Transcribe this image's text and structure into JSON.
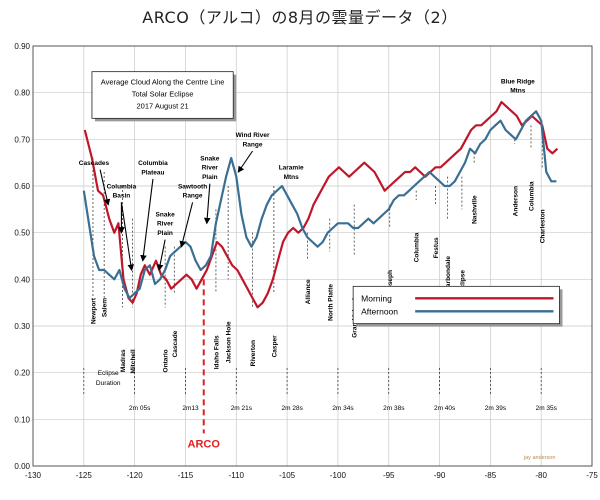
{
  "page_title": "ARCO（アルコ）の8月の雲量データ（2）",
  "chart_data": {
    "type": "line",
    "inner_title": [
      "Average Cloud Along the Centre Line",
      "Total Solar Eclipse",
      "2017 August 21"
    ],
    "xlim": [
      -130,
      -75
    ],
    "ylim": [
      0.0,
      0.9
    ],
    "x_ticks": [
      "-130",
      "-125",
      "-120",
      "-115",
      "-110",
      "-105",
      "-100",
      "-95",
      "-90",
      "-85",
      "-80",
      "-75"
    ],
    "y_ticks": [
      "0.00",
      "0.10",
      "0.20",
      "0.30",
      "0.40",
      "0.50",
      "0.60",
      "0.70",
      "0.80",
      "0.90"
    ],
    "legend": {
      "position": "right",
      "entries": [
        "Morning",
        "Afternoon"
      ]
    },
    "colors": {
      "morning": "#c0162a",
      "afternoon": "#3a6f93",
      "arco": "#e02020"
    },
    "series": [
      {
        "name": "Morning",
        "x": [
          -124.9,
          -124.2,
          -123.6,
          -123.1,
          -122.5,
          -122.0,
          -121.6,
          -121.1,
          -120.6,
          -120.2,
          -119.8,
          -119.4,
          -119.0,
          -118.5,
          -117.9,
          -117.4,
          -116.9,
          -116.4,
          -115.9,
          -115.4,
          -114.9,
          -114.4,
          -113.9,
          -113.4,
          -112.9,
          -112.4,
          -111.9,
          -111.4,
          -110.9,
          -110.4,
          -109.9,
          -109.4,
          -108.9,
          -108.4,
          -107.9,
          -107.4,
          -106.9,
          -106.4,
          -105.9,
          -105.4,
          -104.9,
          -104.4,
          -103.9,
          -103.4,
          -102.9,
          -102.4,
          -101.9,
          -101.4,
          -100.9,
          -100.4,
          -99.9,
          -99.4,
          -98.9,
          -98.4,
          -97.9,
          -97.4,
          -96.9,
          -96.4,
          -95.9,
          -95.4,
          -94.9,
          -94.4,
          -93.9,
          -93.4,
          -92.9,
          -92.4,
          -91.9,
          -91.4,
          -90.9,
          -90.4,
          -89.9,
          -89.4,
          -88.9,
          -88.4,
          -87.9,
          -87.4,
          -86.9,
          -86.4,
          -85.9,
          -85.4,
          -84.9,
          -84.4,
          -83.9,
          -83.4,
          -82.9,
          -82.4,
          -81.9,
          -81.4,
          -80.9,
          -80.4,
          -79.9,
          -79.4,
          -78.9,
          -78.4
        ],
        "values": [
          0.72,
          0.66,
          0.59,
          0.58,
          0.53,
          0.5,
          0.52,
          0.4,
          0.36,
          0.35,
          0.37,
          0.41,
          0.43,
          0.41,
          0.44,
          0.41,
          0.4,
          0.38,
          0.39,
          0.4,
          0.41,
          0.4,
          0.38,
          0.4,
          0.42,
          0.45,
          0.48,
          0.47,
          0.45,
          0.43,
          0.42,
          0.4,
          0.38,
          0.36,
          0.34,
          0.35,
          0.37,
          0.4,
          0.44,
          0.48,
          0.5,
          0.51,
          0.5,
          0.51,
          0.53,
          0.56,
          0.58,
          0.6,
          0.62,
          0.63,
          0.64,
          0.63,
          0.62,
          0.63,
          0.64,
          0.65,
          0.64,
          0.63,
          0.61,
          0.59,
          0.6,
          0.61,
          0.62,
          0.63,
          0.63,
          0.64,
          0.63,
          0.62,
          0.63,
          0.64,
          0.64,
          0.65,
          0.66,
          0.67,
          0.68,
          0.7,
          0.72,
          0.73,
          0.73,
          0.74,
          0.75,
          0.76,
          0.78,
          0.77,
          0.76,
          0.75,
          0.73,
          0.74,
          0.75,
          0.74,
          0.73,
          0.68,
          0.67,
          0.68
        ]
      },
      {
        "name": "Afternoon",
        "x": [
          -125.0,
          -124.5,
          -124.0,
          -123.5,
          -123.0,
          -122.5,
          -122.0,
          -121.5,
          -121.0,
          -120.5,
          -120.0,
          -119.5,
          -119.0,
          -118.5,
          -118.0,
          -117.5,
          -117.0,
          -116.5,
          -116.0,
          -115.5,
          -115.0,
          -114.5,
          -114.0,
          -113.5,
          -113.0,
          -112.5,
          -112.0,
          -111.5,
          -111.0,
          -110.5,
          -110.0,
          -109.5,
          -109.0,
          -108.5,
          -108.0,
          -107.5,
          -107.0,
          -106.5,
          -106.0,
          -105.5,
          -105.0,
          -104.5,
          -104.0,
          -103.5,
          -103.0,
          -102.5,
          -102.0,
          -101.5,
          -101.0,
          -100.5,
          -100.0,
          -99.5,
          -99.0,
          -98.5,
          -98.0,
          -97.5,
          -97.0,
          -96.5,
          -96.0,
          -95.5,
          -95.0,
          -94.5,
          -94.0,
          -93.5,
          -93.0,
          -92.5,
          -92.0,
          -91.5,
          -91.0,
          -90.5,
          -90.0,
          -89.5,
          -89.0,
          -88.5,
          -88.0,
          -87.5,
          -87.0,
          -86.5,
          -86.0,
          -85.5,
          -85.0,
          -84.5,
          -84.0,
          -83.5,
          -83.0,
          -82.5,
          -82.0,
          -81.5,
          -81.0,
          -80.5,
          -80.0,
          -79.5,
          -79.0,
          -78.5
        ],
        "values": [
          0.59,
          0.52,
          0.45,
          0.42,
          0.42,
          0.41,
          0.4,
          0.42,
          0.38,
          0.36,
          0.37,
          0.38,
          0.42,
          0.43,
          0.39,
          0.4,
          0.42,
          0.45,
          0.46,
          0.47,
          0.48,
          0.47,
          0.44,
          0.42,
          0.43,
          0.45,
          0.52,
          0.57,
          0.62,
          0.66,
          0.62,
          0.54,
          0.49,
          0.47,
          0.49,
          0.53,
          0.56,
          0.58,
          0.59,
          0.6,
          0.58,
          0.56,
          0.54,
          0.51,
          0.49,
          0.48,
          0.47,
          0.48,
          0.5,
          0.51,
          0.52,
          0.52,
          0.52,
          0.51,
          0.51,
          0.52,
          0.53,
          0.52,
          0.53,
          0.54,
          0.55,
          0.57,
          0.58,
          0.58,
          0.59,
          0.6,
          0.61,
          0.62,
          0.63,
          0.62,
          0.61,
          0.6,
          0.6,
          0.61,
          0.63,
          0.65,
          0.68,
          0.67,
          0.69,
          0.7,
          0.72,
          0.73,
          0.74,
          0.72,
          0.71,
          0.7,
          0.72,
          0.74,
          0.75,
          0.76,
          0.74,
          0.63,
          0.61,
          0.61
        ]
      }
    ],
    "place_labels": [
      {
        "text": "Newport",
        "x": -124.1,
        "y": 0.36,
        "vertical": true
      },
      {
        "text": "Salem",
        "x": -123.0,
        "y": 0.36,
        "vertical": true
      },
      {
        "text": "Madras",
        "x": -121.2,
        "y": 0.25,
        "vertical": true
      },
      {
        "text": "Mitchell",
        "x": -120.2,
        "y": 0.25,
        "vertical": true
      },
      {
        "text": "Ontario",
        "x": -117.0,
        "y": 0.25,
        "vertical": true
      },
      {
        "text": "Cascade",
        "x": -116.1,
        "y": 0.29,
        "vertical": true
      },
      {
        "text": "Idaho Falls",
        "x": -112.0,
        "y": 0.28,
        "vertical": true
      },
      {
        "text": "Jackson Hole",
        "x": -110.8,
        "y": 0.31,
        "vertical": true
      },
      {
        "text": "Riverton",
        "x": -108.4,
        "y": 0.27,
        "vertical": true
      },
      {
        "text": "Casper",
        "x": -106.3,
        "y": 0.28,
        "vertical": true
      },
      {
        "text": "Alliance",
        "x": -103.0,
        "y": 0.4,
        "vertical": true
      },
      {
        "text": "North Platte",
        "x": -100.8,
        "y": 0.39,
        "vertical": true
      },
      {
        "text": "Grand Island",
        "x": -98.4,
        "y": 0.36,
        "vertical": true
      },
      {
        "text": "St Joseph",
        "x": -94.9,
        "y": 0.42,
        "vertical": true
      },
      {
        "text": "Columbia",
        "x": -92.3,
        "y": 0.5,
        "vertical": true
      },
      {
        "text": "Festus",
        "x": -90.4,
        "y": 0.49,
        "vertical": true
      },
      {
        "text": "Carbondale",
        "x": -89.2,
        "y": 0.45,
        "vertical": true
      },
      {
        "text": "maximum eclipse",
        "x": -87.8,
        "y": 0.42,
        "vertical": true
      },
      {
        "text": "Nashville",
        "x": -86.6,
        "y": 0.58,
        "vertical": true
      },
      {
        "text": "Anderson",
        "x": -82.6,
        "y": 0.6,
        "vertical": true
      },
      {
        "text": "Columbia",
        "x": -81.0,
        "y": 0.61,
        "vertical": true
      },
      {
        "text": "Charleston",
        "x": -79.9,
        "y": 0.55,
        "vertical": true
      },
      {
        "text": "Cascades",
        "x": -124.0,
        "y": 0.645,
        "vertical": false
      },
      {
        "text": "Columbia",
        "x": -121.3,
        "y": 0.595,
        "vertical": false
      },
      {
        "text": "Basin",
        "x": -121.3,
        "y": 0.575,
        "vertical": false
      },
      {
        "text": "Columbia",
        "x": -118.2,
        "y": 0.645,
        "vertical": false
      },
      {
        "text": "Plateau",
        "x": -118.2,
        "y": 0.625,
        "vertical": false
      },
      {
        "text": "Snake",
        "x": -117.0,
        "y": 0.535,
        "vertical": false
      },
      {
        "text": "River",
        "x": -117.0,
        "y": 0.515,
        "vertical": false
      },
      {
        "text": "Plain",
        "x": -117.0,
        "y": 0.495,
        "vertical": false
      },
      {
        "text": "Sawtooth",
        "x": -114.3,
        "y": 0.595,
        "vertical": false
      },
      {
        "text": "Range",
        "x": -114.3,
        "y": 0.575,
        "vertical": false
      },
      {
        "text": "Snake",
        "x": -112.6,
        "y": 0.655,
        "vertical": false
      },
      {
        "text": "River",
        "x": -112.6,
        "y": 0.635,
        "vertical": false
      },
      {
        "text": "Plain",
        "x": -112.6,
        "y": 0.615,
        "vertical": false
      },
      {
        "text": "Wind River",
        "x": -108.4,
        "y": 0.705,
        "vertical": false
      },
      {
        "text": "Range",
        "x": -108.4,
        "y": 0.685,
        "vertical": false
      },
      {
        "text": "Laramie",
        "x": -104.6,
        "y": 0.635,
        "vertical": false
      },
      {
        "text": "Mtns",
        "x": -104.6,
        "y": 0.615,
        "vertical": false
      },
      {
        "text": "Blue Ridge",
        "x": -82.3,
        "y": 0.82,
        "vertical": false
      },
      {
        "text": "Mtns",
        "x": -82.3,
        "y": 0.8,
        "vertical": false
      }
    ],
    "eclipse_duration": {
      "label": [
        "Eclipse",
        "Duration"
      ],
      "entries": [
        {
          "text": "2m 05s",
          "x": -119.5
        },
        {
          "text": "2m13",
          "x": -114.5
        },
        {
          "text": "2m 21s",
          "x": -109.5
        },
        {
          "text": "2m 28s",
          "x": -104.5
        },
        {
          "text": "2m 34s",
          "x": -99.5
        },
        {
          "text": "2m 38s",
          "x": -94.5
        },
        {
          "text": "2m 40s",
          "x": -89.5
        },
        {
          "text": "2m 39s",
          "x": -84.5
        },
        {
          "text": "2m 35s",
          "x": -79.5
        }
      ],
      "tick_x": [
        -125,
        -120,
        -115,
        -110,
        -105,
        -100,
        -95,
        -90,
        -85,
        -80
      ]
    },
    "arco": {
      "label": "ARCO",
      "x": -113.2
    },
    "credit": "jay anderson"
  }
}
